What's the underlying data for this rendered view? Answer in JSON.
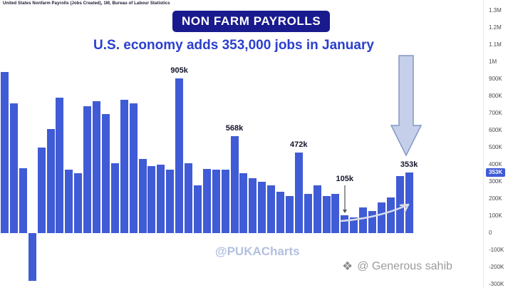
{
  "source_line": "United States Nonfarm Payrolls (Jobs Created), 1M, Bureau of Labour Statistics",
  "title_badge": "NON FARM PAYROLLS",
  "subtitle": "U.S. economy adds 353,000 jobs in January",
  "watermark_center": "@PUKACharts",
  "watermark_right": "@ Generous sahib",
  "colors": {
    "bar": "#3f5bd5",
    "badge_bg": "#191a8e",
    "subtitle": "#2b3fce",
    "axis_text": "#4a4a4a",
    "axis_highlight_bg": "#3f5bd5",
    "arrow_fill": "#c6cfe9",
    "arrow_stroke": "#8296c6",
    "watermark_center": "#b2c0de",
    "watermark_right": "#9b9b9b"
  },
  "chart_data": {
    "type": "bar",
    "title": "NON FARM PAYROLLS",
    "subtitle": "U.S. economy adds 353,000 jobs in January",
    "unit": "jobs added per month, thousands",
    "ylim": [
      -300,
      1300
    ],
    "grid": false,
    "legend": false,
    "axis_side": "right",
    "y_tick_labels": [
      {
        "text": "1.3M",
        "value": 1300
      },
      {
        "text": "1.2M",
        "value": 1200
      },
      {
        "text": "1.1M",
        "value": 1100
      },
      {
        "text": "1M",
        "value": 1000
      },
      {
        "text": "900K",
        "value": 900
      },
      {
        "text": "800K",
        "value": 800
      },
      {
        "text": "700K",
        "value": 700
      },
      {
        "text": "600K",
        "value": 600
      },
      {
        "text": "500K",
        "value": 500
      },
      {
        "text": "400K",
        "value": 400
      },
      {
        "text": "353K",
        "value": 353,
        "highlight": true
      },
      {
        "text": "300K",
        "value": 300
      },
      {
        "text": "200K",
        "value": 200
      },
      {
        "text": "100K",
        "value": 100
      },
      {
        "text": "0",
        "value": 0
      },
      {
        "text": "-100K",
        "value": -100
      },
      {
        "text": "-200K",
        "value": -200
      },
      {
        "text": "-300K",
        "value": -300
      }
    ],
    "values": [
      940,
      760,
      380,
      -280,
      500,
      610,
      790,
      370,
      350,
      740,
      770,
      695,
      410,
      780,
      760,
      435,
      390,
      400,
      370,
      905,
      410,
      280,
      375,
      370,
      370,
      568,
      350,
      320,
      300,
      280,
      240,
      215,
      472,
      230,
      280,
      215,
      230,
      105,
      90,
      150,
      130,
      180,
      210,
      333,
      353
    ],
    "annotations": [
      {
        "index": 19,
        "text": "905k"
      },
      {
        "index": 25,
        "text": "568k"
      },
      {
        "index": 32,
        "text": "472k"
      },
      {
        "index": 37,
        "text": "105k",
        "arrow_down": true,
        "dy": -40
      },
      {
        "index": 44,
        "text": "353k"
      }
    ],
    "big_down_arrow_note": "large arrow pointing down at the final 353k bar",
    "trend_arrow_note": "thin rising arrow over the final months' bars"
  }
}
